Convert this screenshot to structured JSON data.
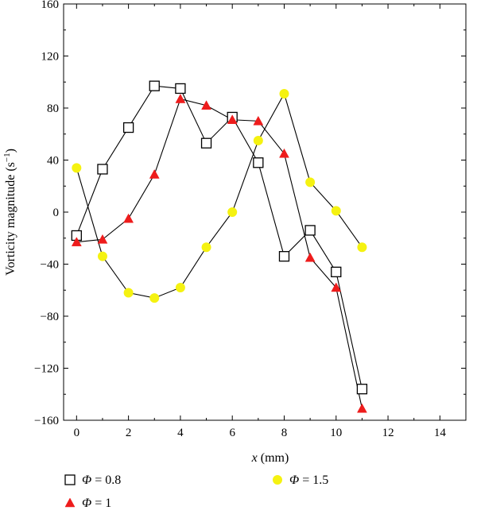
{
  "chart_data": {
    "type": "line",
    "xlabel_var": "x",
    "xlabel_unit": " (mm)",
    "ylabel": "Vorticity magnitude (s",
    "ylabel_sup": "−1",
    "ylabel_close": ")",
    "xlim": [
      -0.5,
      15
    ],
    "ylim": [
      -160,
      160
    ],
    "x_ticks": [
      0,
      2,
      4,
      6,
      8,
      10,
      12,
      14
    ],
    "x_tick_labels": [
      "0",
      "2",
      "4",
      "6",
      "8",
      "10",
      "12",
      "14"
    ],
    "y_ticks": [
      160,
      120,
      80,
      40,
      0,
      -40,
      -80,
      -120,
      -160
    ],
    "y_tick_labels": [
      "160",
      "120",
      "80",
      "40",
      "0",
      "−40",
      "−80",
      "−120",
      "−160"
    ],
    "grid": false,
    "legend_position": "bottom",
    "series": [
      {
        "name": "Φ = 0.8",
        "legend_symbol": "Φ",
        "legend_value": " = 0.8",
        "marker": "square",
        "color": "#000000",
        "fill": "#ffffff",
        "x": [
          0,
          1,
          2,
          3,
          4,
          5,
          6,
          7,
          8,
          9,
          10,
          11
        ],
        "values": [
          -18,
          33,
          65,
          97,
          95,
          53,
          73,
          38,
          -34,
          -14,
          -46,
          -136
        ]
      },
      {
        "name": "Φ = 1",
        "legend_symbol": "Φ",
        "legend_value": " = 1",
        "marker": "triangle",
        "color": "#000000",
        "fill": "#ee1c1c",
        "x": [
          0,
          1,
          2,
          3,
          4,
          5,
          6,
          7,
          8,
          9,
          10,
          11
        ],
        "values": [
          -23,
          -21,
          -5,
          29,
          87,
          82,
          71,
          70,
          45,
          -35,
          -58,
          -151
        ]
      },
      {
        "name": "Φ = 1.5",
        "legend_symbol": "Φ",
        "legend_value": " = 1.5",
        "marker": "circle",
        "color": "#000000",
        "fill": "#f5f211",
        "x": [
          0,
          1,
          2,
          3,
          4,
          5,
          6,
          7,
          8,
          9,
          10,
          11
        ],
        "values": [
          34,
          -34,
          -62,
          -66,
          -58,
          -27,
          0,
          55,
          91,
          23,
          1,
          -27
        ]
      }
    ]
  }
}
